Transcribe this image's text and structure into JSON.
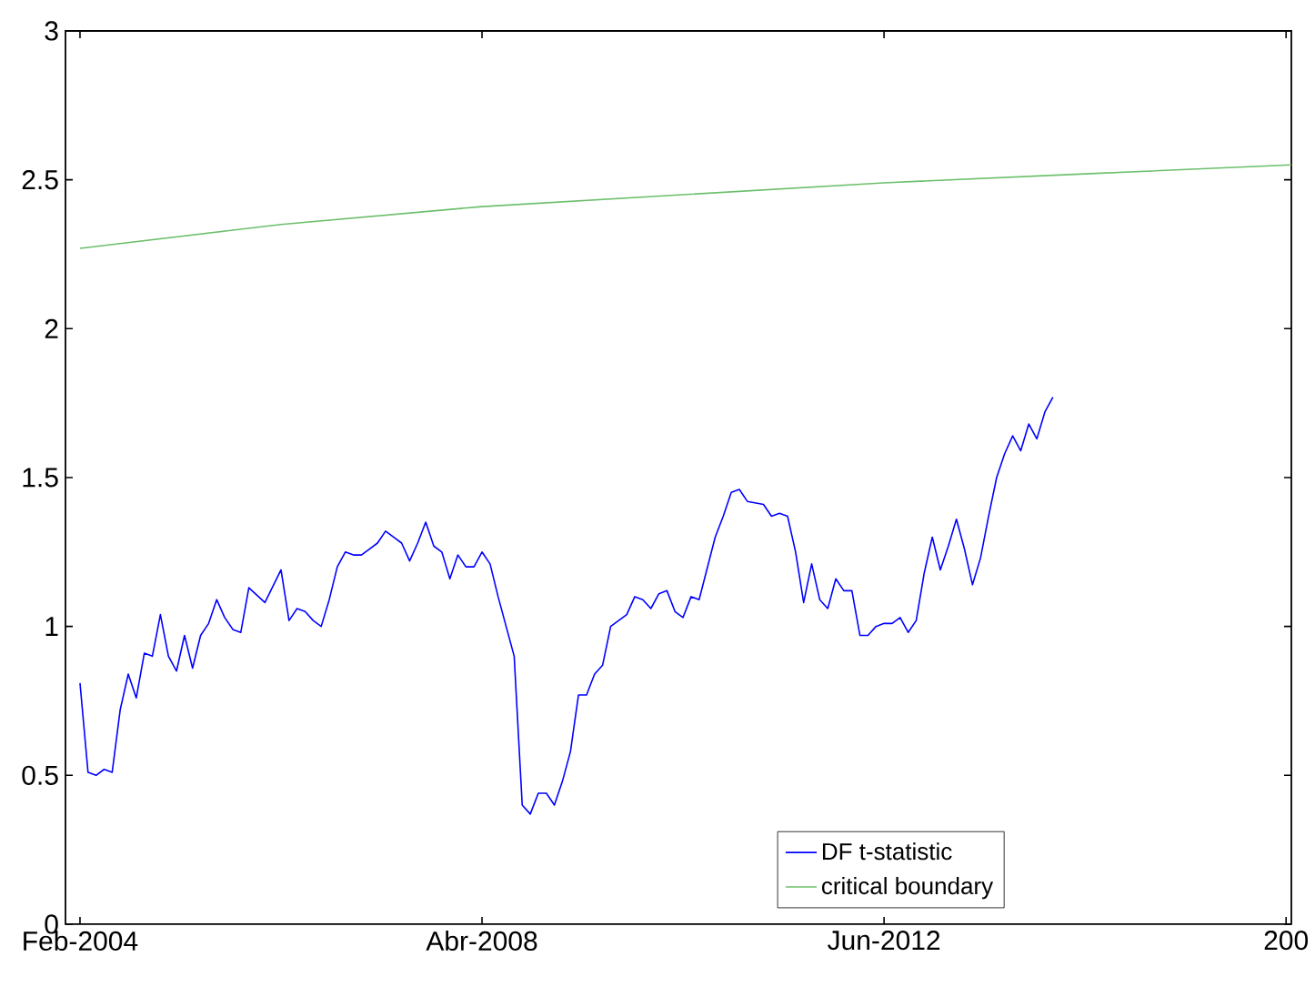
{
  "chart_data": {
    "type": "line",
    "xlim": [
      "2003-12-07",
      "2016-08-21"
    ],
    "xticks": [
      {
        "value": "2004-02",
        "label": "Feb-2004"
      },
      {
        "value": "2008-04",
        "label": "Abr-2008"
      },
      {
        "value": "2012-06",
        "label": "Jun-2012"
      },
      {
        "value": "2016-08",
        "label": "200"
      }
    ],
    "ylim": [
      0,
      3
    ],
    "yticks": [
      0,
      0.5,
      1,
      1.5,
      2,
      2.5,
      3
    ],
    "grid": false,
    "legend": "bottom right",
    "series": [
      {
        "name": "DF t-statistic",
        "color": "#0000ff",
        "x": [
          "2004-02",
          "2004-03",
          "2004-04",
          "2004-05",
          "2004-06",
          "2004-07",
          "2004-08",
          "2004-09",
          "2004-10",
          "2004-11",
          "2004-12",
          "2005-01",
          "2005-02",
          "2005-03",
          "2005-04",
          "2005-05",
          "2005-06",
          "2005-07",
          "2005-08",
          "2005-09",
          "2005-10",
          "2005-11",
          "2006-01",
          "2006-03",
          "2006-04",
          "2006-05",
          "2006-06",
          "2006-07",
          "2006-08",
          "2006-09",
          "2006-10",
          "2006-11",
          "2006-12",
          "2007-01",
          "2007-02",
          "2007-03",
          "2007-04",
          "2007-05",
          "2007-06",
          "2007-07",
          "2007-08",
          "2007-09",
          "2007-10",
          "2007-11",
          "2007-12",
          "2008-01",
          "2008-02",
          "2008-03",
          "2008-04",
          "2008-05",
          "2008-06",
          "2008-07",
          "2008-08",
          "2008-09",
          "2008-10",
          "2008-11",
          "2008-12",
          "2009-01",
          "2009-02",
          "2009-03",
          "2009-04",
          "2009-05",
          "2009-06",
          "2009-07",
          "2009-08",
          "2009-09",
          "2009-10",
          "2009-11",
          "2009-12",
          "2010-01",
          "2010-02",
          "2010-03",
          "2010-04",
          "2010-05",
          "2010-06",
          "2010-07",
          "2010-09",
          "2010-10",
          "2010-11",
          "2010-12",
          "2011-01",
          "2011-03",
          "2011-04",
          "2011-05",
          "2011-06",
          "2011-07",
          "2011-08",
          "2011-09",
          "2011-10",
          "2011-11",
          "2011-12",
          "2012-01",
          "2012-02",
          "2012-03",
          "2012-04",
          "2012-05",
          "2012-06",
          "2012-07",
          "2012-08",
          "2012-09",
          "2012-10",
          "2012-11",
          "2012-12",
          "2013-01",
          "2013-02",
          "2013-03",
          "2013-04",
          "2013-05",
          "2013-06",
          "2013-07",
          "2013-08",
          "2013-09",
          "2013-10",
          "2013-11",
          "2013-12",
          "2014-01",
          "2014-02",
          "2014-03"
        ],
        "values": [
          0.81,
          0.51,
          0.5,
          0.52,
          0.51,
          0.72,
          0.84,
          0.76,
          0.91,
          0.9,
          1.04,
          0.9,
          0.85,
          0.97,
          0.86,
          0.97,
          1.01,
          1.09,
          1.03,
          0.99,
          0.98,
          1.13,
          1.08,
          1.19,
          1.02,
          1.06,
          1.05,
          1.02,
          1.0,
          1.09,
          1.2,
          1.25,
          1.24,
          1.24,
          1.26,
          1.28,
          1.32,
          1.3,
          1.28,
          1.22,
          1.28,
          1.35,
          1.27,
          1.25,
          1.16,
          1.24,
          1.2,
          1.2,
          1.25,
          1.21,
          1.1,
          1.0,
          0.9,
          0.4,
          0.37,
          0.44,
          0.44,
          0.4,
          0.48,
          0.58,
          0.77,
          0.77,
          0.84,
          0.87,
          1.0,
          1.02,
          1.04,
          1.1,
          1.09,
          1.06,
          1.11,
          1.12,
          1.05,
          1.03,
          1.1,
          1.09,
          1.3,
          1.37,
          1.45,
          1.46,
          1.42,
          1.41,
          1.37,
          1.38,
          1.37,
          1.25,
          1.08,
          1.21,
          1.09,
          1.06,
          1.16,
          1.12,
          1.12,
          0.97,
          0.97,
          1.0,
          1.01,
          1.01,
          1.03,
          0.98,
          1.02,
          1.18,
          1.3,
          1.19,
          1.27,
          1.36,
          1.26,
          1.14,
          1.23,
          1.37,
          1.5,
          1.58,
          1.64,
          1.59,
          1.68,
          1.63,
          1.72,
          1.77
        ]
      },
      {
        "name": "critical boundary",
        "color": "#6cbf6c",
        "x": [
          "2004-02",
          "2006-03",
          "2008-04",
          "2010-05",
          "2012-06",
          "2014-07",
          "2016-08-21"
        ],
        "values": [
          2.27,
          2.35,
          2.41,
          2.45,
          2.49,
          2.52,
          2.55
        ]
      }
    ]
  }
}
